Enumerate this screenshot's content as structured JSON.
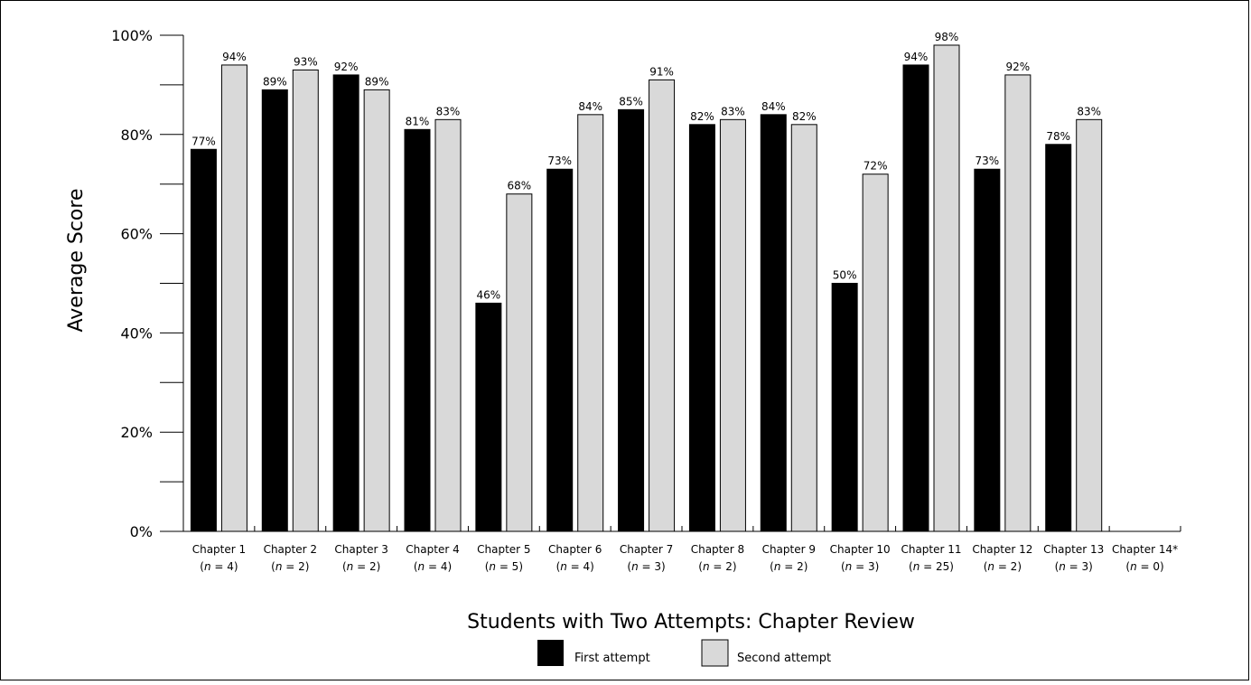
{
  "chart_data": {
    "type": "bar",
    "title": "",
    "xlabel": "Students with Two Attempts: Chapter Review",
    "ylabel": "Average Score",
    "ylim": [
      0,
      100
    ],
    "y_ticks": [
      "0%",
      "20%",
      "40%",
      "60%",
      "80%",
      "100%"
    ],
    "categories": [
      "Chapter 1",
      "Chapter 2",
      "Chapter 3",
      "Chapter 4",
      "Chapter 5",
      "Chapter 6",
      "Chapter 7",
      "Chapter 8",
      "Chapter 9",
      "Chapter 10",
      "Chapter 11",
      "Chapter 12",
      "Chapter 13",
      "Chapter 14*"
    ],
    "category_n": [
      "4",
      "2",
      "2",
      "4",
      "5",
      "4",
      "3",
      "2",
      "2",
      "3",
      "25",
      "2",
      "3",
      "0"
    ],
    "series": [
      {
        "name": "First attempt",
        "color": "#000000",
        "values": [
          77,
          89,
          92,
          81,
          46,
          73,
          85,
          82,
          84,
          50,
          94,
          73,
          78,
          null
        ],
        "labels": [
          "77%",
          "89%",
          "92%",
          "81%",
          "46%",
          "73%",
          "85%",
          "82%",
          "84%",
          "50%",
          "94%",
          "73%",
          "78%",
          ""
        ]
      },
      {
        "name": "Second attempt",
        "color": "#d9d9d9",
        "values": [
          94,
          93,
          89,
          83,
          68,
          84,
          91,
          83,
          82,
          72,
          98,
          92,
          83,
          null
        ],
        "labels": [
          "94%",
          "93%",
          "89%",
          "83%",
          "68%",
          "84%",
          "91%",
          "83%",
          "82%",
          "72%",
          "98%",
          "92%",
          "83%",
          ""
        ]
      }
    ],
    "legend_position": "bottom-center",
    "grid": false
  }
}
